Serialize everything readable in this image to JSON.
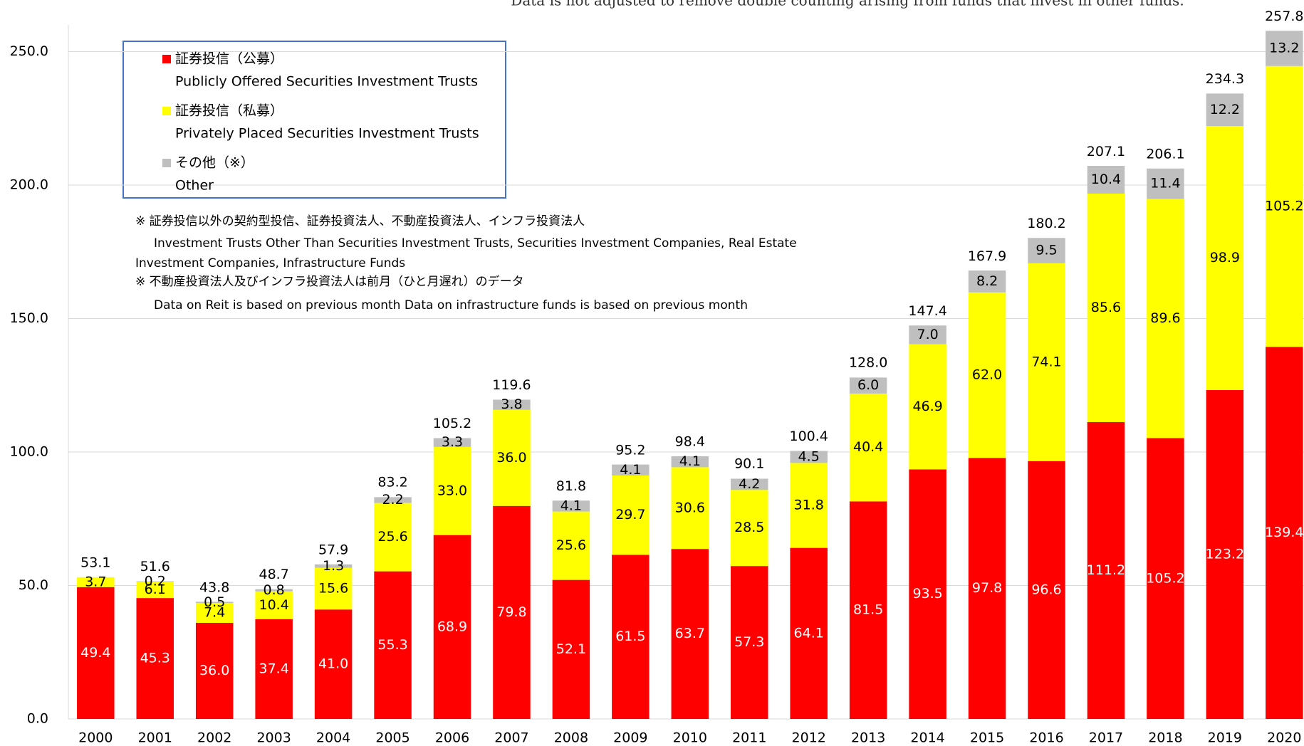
{
  "chart_data": {
    "type": "stacked_bar",
    "subtitle": "Data is not adjusted to remove double counting arising from funds that invest in other funds.",
    "categories": [
      "2000",
      "2001",
      "2002",
      "2003",
      "2004",
      "2005",
      "2006",
      "2007",
      "2008",
      "2009",
      "2010",
      "2011",
      "2012",
      "2013",
      "2014",
      "2015",
      "2016",
      "2017",
      "2018",
      "2019",
      "2020"
    ],
    "series": [
      {
        "name": "証券投信（公募）",
        "name_en": "Publicly Offered Securities Investment Trusts",
        "color": "#ff0000",
        "label_color": "#ffffff",
        "values": [
          49.4,
          45.3,
          36.0,
          37.4,
          41.0,
          55.3,
          68.9,
          79.8,
          52.1,
          61.5,
          63.7,
          57.3,
          64.1,
          81.5,
          93.5,
          97.8,
          96.6,
          111.2,
          105.2,
          123.2,
          139.4
        ],
        "value_labels": [
          "49.4",
          "45.3",
          "36.0",
          "37.4",
          "41.0",
          "55.3",
          "68.9",
          "79.8",
          "52.1",
          "61.5",
          "63.7",
          "57.3",
          "64.1",
          "81.5",
          "93.5",
          "97.8",
          "96.6",
          "111.2",
          "105.2",
          "123.2",
          "139.4"
        ]
      },
      {
        "name": "証券投信（私募）",
        "name_en": "Privately Placed Securities Investment Trusts",
        "color": "#ffff00",
        "label_color": "#000000",
        "values": [
          3.7,
          6.1,
          7.4,
          10.4,
          15.6,
          25.6,
          33.0,
          36.0,
          25.6,
          29.7,
          30.6,
          28.5,
          31.8,
          40.4,
          46.9,
          62.0,
          74.1,
          85.6,
          89.6,
          98.9,
          105.2
        ],
        "value_labels": [
          "3.7",
          "6.1",
          "7.4",
          "10.4",
          "15.6",
          "25.6",
          "33.0",
          "36.0",
          "25.6",
          "29.7",
          "30.6",
          "28.5",
          "31.8",
          "40.4",
          "46.9",
          "62.0",
          "74.1",
          "85.6",
          "89.6",
          "98.9",
          "105.2"
        ]
      },
      {
        "name": "その他（※）",
        "name_en": "Other",
        "color": "#bfbfbf",
        "label_color": "#000000",
        "values": [
          null,
          0.2,
          0.5,
          0.8,
          1.3,
          2.2,
          3.3,
          3.8,
          4.1,
          4.1,
          4.1,
          4.2,
          4.5,
          6.0,
          7.0,
          8.2,
          9.5,
          10.4,
          11.4,
          12.2,
          13.2
        ],
        "value_labels": [
          null,
          "0.2",
          "0.5",
          "0.8",
          "1.3",
          "2.2",
          "3.3",
          "3.8",
          "4.1",
          "4.1",
          "4.1",
          "4.2",
          "4.5",
          "6.0",
          "7.0",
          "8.2",
          "9.5",
          "10.4",
          "11.4",
          "12.2",
          "13.2"
        ]
      }
    ],
    "totals": [
      53.1,
      51.6,
      43.8,
      48.7,
      57.9,
      83.2,
      105.2,
      119.6,
      81.8,
      95.2,
      98.4,
      90.1,
      100.4,
      128.0,
      147.4,
      167.9,
      180.2,
      207.1,
      206.1,
      234.3,
      257.8
    ],
    "total_labels": [
      "53.1",
      "51.6",
      "43.8",
      "48.7",
      "57.9",
      "83.2",
      "105.2",
      "119.6",
      "81.8",
      "95.2",
      "98.4",
      "90.1",
      "100.4",
      "128.0",
      "147.4",
      "167.9",
      "180.2",
      "207.1",
      "206.1",
      "234.3",
      "257.8"
    ],
    "notes": [
      "※ 証券投信以外の契約型投信、証券投資法人、不動産投資法人、インフラ投資法人",
      "Investment Trusts Other Than Securities Investment Trusts, Securities Investment Companies, Real Estate",
      "Investment Companies, Infrastructure Funds",
      "※ 不動産投資法人及びインフラ投資法人は前月（ひと月遅れ）のデータ",
      "Data on Reit is based on previous month Data on infrastructure funds is based on previous month"
    ],
    "ylim": [
      0,
      260
    ],
    "yticks": [
      {
        "value": 0,
        "label": "0.0"
      },
      {
        "value": 50,
        "label": "50.0"
      },
      {
        "value": 100,
        "label": "100.0"
      },
      {
        "value": 150,
        "label": "150.0"
      },
      {
        "value": 200,
        "label": "200.0"
      },
      {
        "value": 250,
        "label": "250.0"
      }
    ],
    "grid": true,
    "legend": "upper left"
  }
}
